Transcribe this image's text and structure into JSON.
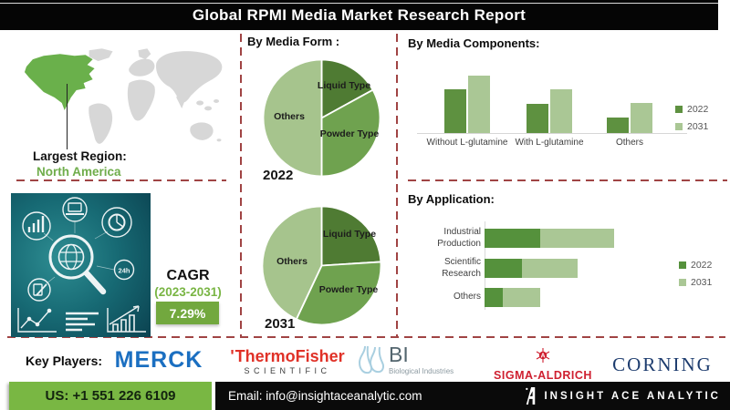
{
  "header": {
    "title": "Global RPMI Media Market Research Report"
  },
  "left_panel": {
    "region_label": "Largest Region:",
    "region_value": "North America",
    "cagr_label": "CAGR",
    "cagr_range": "(2023-2031)",
    "cagr_value": "7.29%",
    "map_colors": {
      "highlight": "#6ab04b",
      "land": "#d7d7d7"
    }
  },
  "sections": {
    "media_form_title": "By Media Form :",
    "media_components_title": "By Media Components:",
    "application_title": "By Application:"
  },
  "chart_data": [
    {
      "type": "pie",
      "title": "By Media Form : 2022",
      "year_label": "2022",
      "labels": [
        "Liquid Type",
        "Powder Type",
        "Others"
      ],
      "values": [
        17,
        33,
        50
      ],
      "colors": [
        "#4f7b33",
        "#6fa24f",
        "#a6c48d"
      ],
      "legend_position": "none"
    },
    {
      "type": "pie",
      "title": "By Media Form : 2031",
      "year_label": "2031",
      "labels": [
        "Liquid Type",
        "Powder Type",
        "Others"
      ],
      "values": [
        24,
        33,
        43
      ],
      "colors": [
        "#4f7b33",
        "#6fa24f",
        "#a6c48d"
      ],
      "legend_position": "none"
    },
    {
      "type": "bar",
      "title": "By Media Components:",
      "categories": [
        "Without L-glutamine",
        "With L-glutamine",
        "Others"
      ],
      "series": [
        {
          "name": "2022",
          "color": "#5e9140",
          "values": [
            76,
            51,
            27
          ]
        },
        {
          "name": "2031",
          "color": "#aac795",
          "values": [
            100,
            76,
            52
          ]
        }
      ],
      "ylim": [
        0,
        100
      ],
      "grid": false,
      "legend_position": "right"
    },
    {
      "type": "stacked_bar_horizontal",
      "title": "By Application:",
      "categories": [
        "Industrial Production",
        "Scientific Research",
        "Others"
      ],
      "series": [
        {
          "name": "2022",
          "color": "#55913c",
          "values": [
            43,
            29,
            14
          ]
        },
        {
          "name": "2031",
          "color": "#aac795",
          "values": [
            57,
            43,
            29
          ]
        }
      ],
      "xlim": [
        0,
        100
      ],
      "grid": false,
      "legend_position": "right"
    }
  ],
  "key_players": {
    "label": "Key Players:",
    "players": [
      {
        "name": "MERCK"
      },
      {
        "name": "ThermoFisher",
        "sub": "SCIENTIFIC",
        "mark": "'"
      },
      {
        "name": "BI",
        "sub": "Biological Industries"
      },
      {
        "name": "SIGMA-ALDRICH"
      },
      {
        "name": "CORNING"
      }
    ]
  },
  "footer": {
    "phone": "US: +1 551 226 6109",
    "email": "Email: info@insightaceanalytic.com",
    "brand": "INSIGHT ACE ANALYTIC"
  }
}
